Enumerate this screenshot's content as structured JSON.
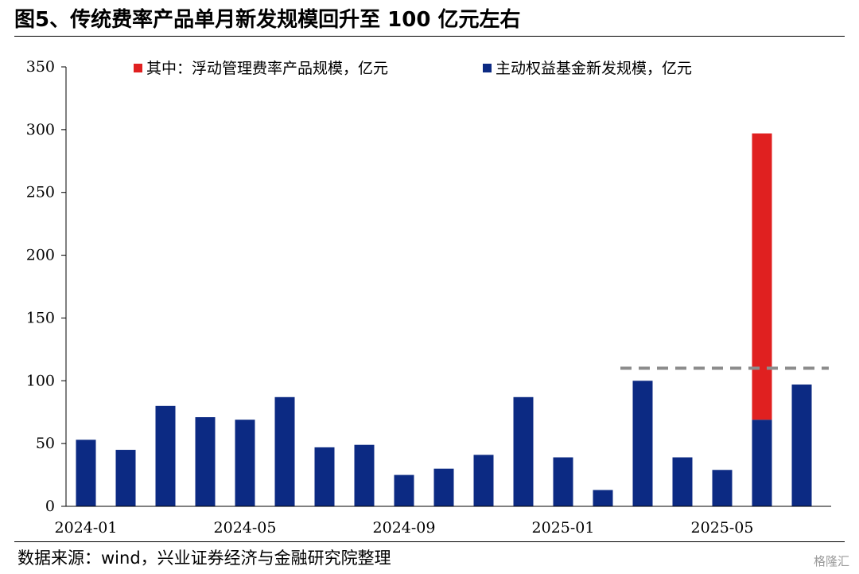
{
  "header": {
    "title": "图5、传统费率产品单月新发规模回升至 100 亿元左右"
  },
  "footer": {
    "source": "数据来源：wind，兴业证券经济与金融研究院整理",
    "watermark": "格隆汇"
  },
  "chart_data": {
    "type": "bar",
    "stacked": true,
    "categories": [
      "2024-01",
      "2024-02",
      "2024-03",
      "2024-04",
      "2024-05",
      "2024-06",
      "2024-07",
      "2024-08",
      "2024-09",
      "2024-10",
      "2024-11",
      "2024-12",
      "2025-01",
      "2025-02",
      "2025-03",
      "2025-04",
      "2025-05",
      "2025-06",
      "2025-07"
    ],
    "x_tick_labels": [
      "2024-01",
      "2024-05",
      "2024-09",
      "2025-01",
      "2025-05"
    ],
    "series": [
      {
        "name": "主动权益基金新发规模，亿元",
        "color": "#0c2a83",
        "values": [
          53,
          45,
          80,
          71,
          69,
          87,
          47,
          49,
          25,
          30,
          41,
          87,
          39,
          13,
          100,
          39,
          29,
          69,
          97
        ]
      },
      {
        "name": "其中：浮动管理费率产品规模，亿元",
        "color": "#e02020",
        "values": [
          0,
          0,
          0,
          0,
          0,
          0,
          0,
          0,
          0,
          0,
          0,
          0,
          0,
          0,
          0,
          0,
          0,
          228,
          0
        ]
      }
    ],
    "legend_order": [
      "其中：浮动管理费率产品规模，亿元",
      "主动权益基金新发规模，亿元"
    ],
    "reference_line": {
      "value": 110,
      "style": "dashed",
      "color": "#8c8c8c",
      "from_category": "2025-03"
    },
    "ylim": [
      0,
      350
    ],
    "yticks": [
      0,
      50,
      100,
      150,
      200,
      250,
      300,
      350
    ],
    "xlabel": "",
    "ylabel": "",
    "grid": false,
    "legend_position": "top"
  }
}
